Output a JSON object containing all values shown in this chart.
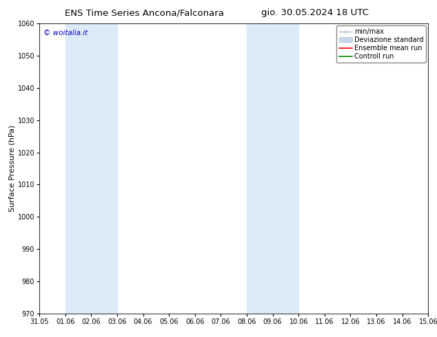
{
  "title_left": "ENS Time Series Ancona/Falconara",
  "title_right": "gio. 30.05.2024 18 UTC",
  "ylabel": "Surface Pressure (hPa)",
  "ylim": [
    970,
    1060
  ],
  "yticks": [
    970,
    980,
    990,
    1000,
    1010,
    1020,
    1030,
    1040,
    1050,
    1060
  ],
  "xlabels": [
    "31.05",
    "01.06",
    "02.06",
    "03.06",
    "04.06",
    "05.06",
    "06.06",
    "07.06",
    "08.06",
    "09.06",
    "10.06",
    "11.06",
    "12.06",
    "13.06",
    "14.06",
    "15.06"
  ],
  "x_values": [
    0,
    1,
    2,
    3,
    4,
    5,
    6,
    7,
    8,
    9,
    10,
    11,
    12,
    13,
    14,
    15
  ],
  "shaded_bands": [
    {
      "xmin": 1,
      "xmax": 3,
      "color": "#ddeaf7"
    },
    {
      "xmin": 8,
      "xmax": 10,
      "color": "#ddeaf7"
    },
    {
      "xmin": 15,
      "xmax": 15.5,
      "color": "#ddeaf7"
    }
  ],
  "watermark": "© woitalia.it",
  "watermark_color": "#0000cc",
  "background_color": "#ffffff",
  "legend_items": [
    {
      "label": "min/max",
      "color": "#aabccc",
      "type": "errorbar"
    },
    {
      "label": "Deviazione standard",
      "color": "#c8d8e8",
      "type": "bar"
    },
    {
      "label": "Ensemble mean run",
      "color": "#ff0000",
      "type": "line"
    },
    {
      "label": "Controll run",
      "color": "#008000",
      "type": "line"
    }
  ],
  "title_fontsize": 9.5,
  "tick_fontsize": 7,
  "ylabel_fontsize": 8,
  "watermark_fontsize": 7.5,
  "legend_fontsize": 7
}
